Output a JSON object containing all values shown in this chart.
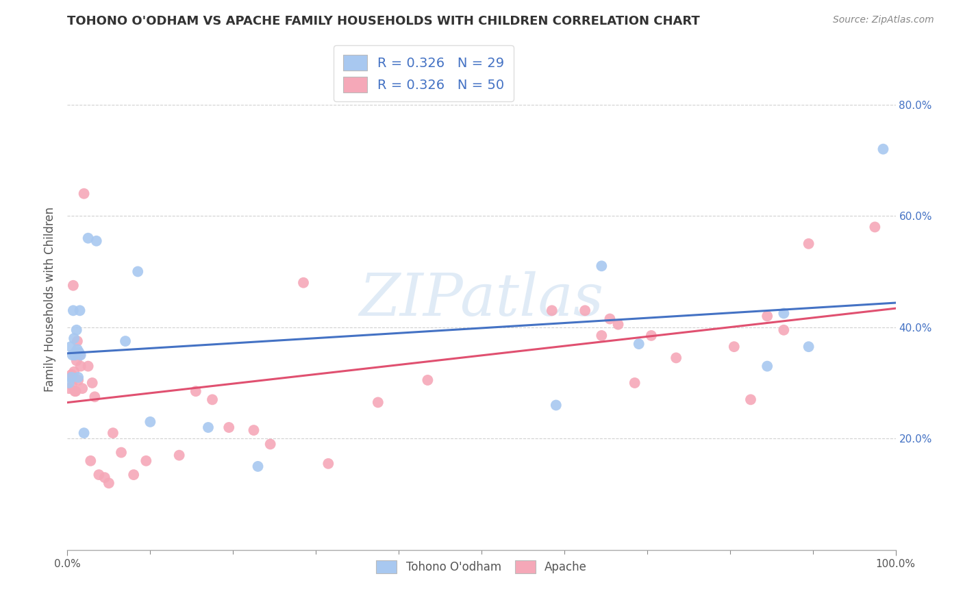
{
  "title": "TOHONO O'ODHAM VS APACHE FAMILY HOUSEHOLDS WITH CHILDREN CORRELATION CHART",
  "source": "Source: ZipAtlas.com",
  "ylabel": "Family Households with Children",
  "legend_labels": [
    "Tohono O'odham",
    "Apache"
  ],
  "R_tohono": 0.326,
  "N_tohono": 29,
  "R_apache": 0.326,
  "N_apache": 50,
  "tohono_color": "#A8C8F0",
  "apache_color": "#F5A8B8",
  "tohono_line_color": "#4472C4",
  "apache_line_color": "#E05070",
  "tick_label_color": "#4472C4",
  "background_color": "#FFFFFF",
  "watermark_text": "ZIPatlas",
  "watermark_color": "#C8DCF0",
  "xlim": [
    0.0,
    1.0
  ],
  "ylim": [
    0.0,
    0.9
  ],
  "tohono_x": [
    0.002,
    0.004,
    0.005,
    0.006,
    0.007,
    0.008,
    0.009,
    0.01,
    0.011,
    0.012,
    0.013,
    0.014,
    0.015,
    0.016,
    0.02,
    0.025,
    0.035,
    0.07,
    0.085,
    0.1,
    0.17,
    0.23,
    0.59,
    0.645,
    0.69,
    0.845,
    0.865,
    0.895,
    0.985
  ],
  "tohono_y": [
    0.3,
    0.365,
    0.31,
    0.35,
    0.43,
    0.38,
    0.35,
    0.355,
    0.395,
    0.36,
    0.31,
    0.355,
    0.43,
    0.35,
    0.21,
    0.56,
    0.555,
    0.375,
    0.5,
    0.23,
    0.22,
    0.15,
    0.26,
    0.51,
    0.37,
    0.33,
    0.425,
    0.365,
    0.72
  ],
  "apache_x": [
    0.002,
    0.004,
    0.005,
    0.006,
    0.007,
    0.008,
    0.009,
    0.01,
    0.011,
    0.012,
    0.013,
    0.015,
    0.016,
    0.018,
    0.02,
    0.025,
    0.028,
    0.03,
    0.033,
    0.038,
    0.045,
    0.05,
    0.055,
    0.065,
    0.08,
    0.095,
    0.135,
    0.155,
    0.175,
    0.195,
    0.225,
    0.245,
    0.285,
    0.315,
    0.375,
    0.435,
    0.585,
    0.625,
    0.645,
    0.655,
    0.665,
    0.685,
    0.705,
    0.735,
    0.805,
    0.825,
    0.845,
    0.865,
    0.895,
    0.975
  ],
  "apache_y": [
    0.29,
    0.31,
    0.315,
    0.295,
    0.475,
    0.32,
    0.285,
    0.285,
    0.34,
    0.375,
    0.305,
    0.35,
    0.33,
    0.29,
    0.64,
    0.33,
    0.16,
    0.3,
    0.275,
    0.135,
    0.13,
    0.12,
    0.21,
    0.175,
    0.135,
    0.16,
    0.17,
    0.285,
    0.27,
    0.22,
    0.215,
    0.19,
    0.48,
    0.155,
    0.265,
    0.305,
    0.43,
    0.43,
    0.385,
    0.415,
    0.405,
    0.3,
    0.385,
    0.345,
    0.365,
    0.27,
    0.42,
    0.395,
    0.55,
    0.58
  ]
}
